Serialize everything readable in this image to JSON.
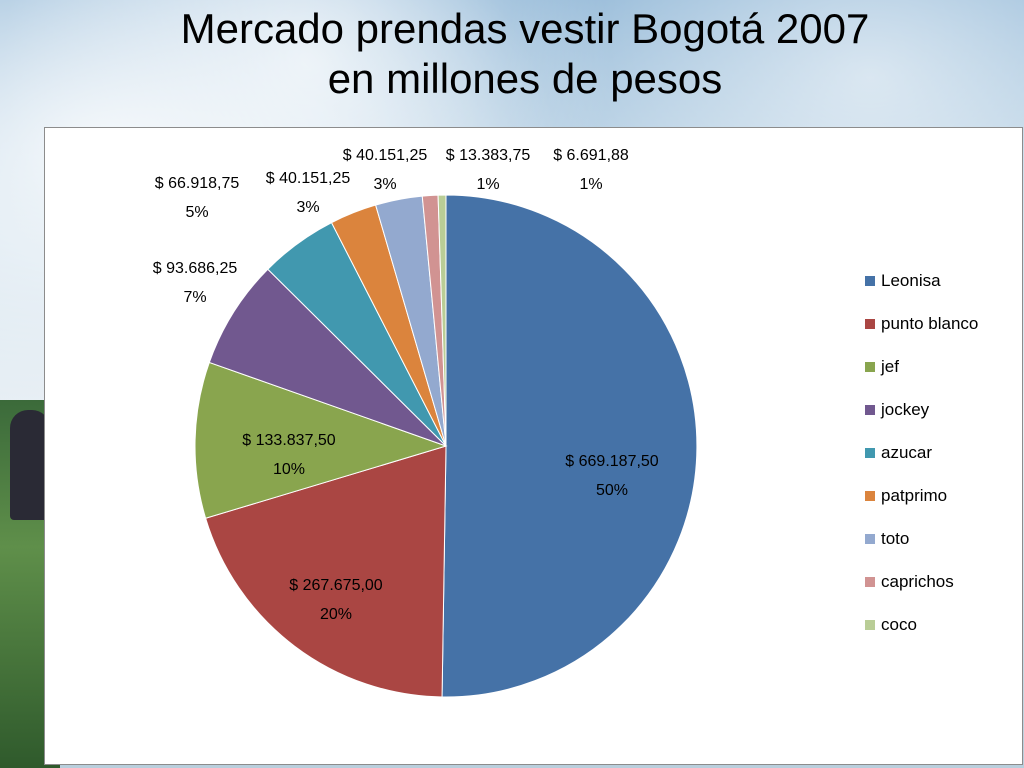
{
  "slide": {
    "title_line1": "Mercado prendas vestir Bogotá 2007",
    "title_line2": "en millones de pesos"
  },
  "chart_data": {
    "type": "pie",
    "title": "Mercado prendas vestir Bogotá 2007 en millones de pesos",
    "legend_position": "right",
    "categories": [
      "Leonisa",
      "punto blanco",
      "jef",
      "jockey",
      "azucar",
      "patprimo",
      "toto",
      "caprichos",
      "coco"
    ],
    "values": [
      669187.5,
      267675.0,
      133837.5,
      93686.25,
      66918.75,
      40151.25,
      40151.25,
      13383.75,
      6691.88
    ],
    "value_labels": [
      "$ 669.187,50",
      "$ 267.675,00",
      "$ 133.837,50",
      "$ 93.686,25",
      "$ 66.918,75",
      "$ 40.151,25",
      "$ 40.151,25",
      "$ 13.383,75",
      "$ 6.691,88"
    ],
    "percent_labels": [
      "50%",
      "20%",
      "10%",
      "7%",
      "5%",
      "3%",
      "3%",
      "1%",
      "1%"
    ],
    "colors": [
      "#4572A7",
      "#AA4643",
      "#89A54E",
      "#71588F",
      "#4198AF",
      "#DB843D",
      "#93A9CF",
      "#D19392",
      "#B9CD96"
    ]
  }
}
